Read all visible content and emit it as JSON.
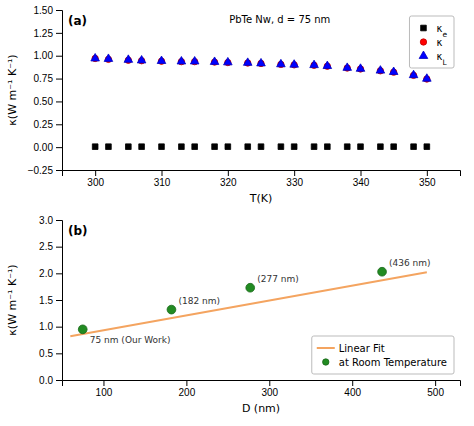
{
  "chart_data": [
    {
      "type": "scatter",
      "title": "PbTe Nw, d = 75 nm",
      "annotations": [
        "(a)"
      ],
      "xlabel": "T(K)",
      "ylabel": "κ(W m⁻¹ K⁻¹)",
      "x": [
        300,
        302,
        305,
        307,
        310,
        313,
        315,
        318,
        320,
        323,
        325,
        328,
        330,
        333,
        335,
        338,
        340,
        343,
        345,
        348,
        350
      ],
      "series": [
        {
          "name": "κe",
          "color": "black",
          "marker": "square",
          "values": [
            0.005,
            0.005,
            0.005,
            0.005,
            0.005,
            0.005,
            0.005,
            0.005,
            0.005,
            0.005,
            0.005,
            0.005,
            0.005,
            0.005,
            0.005,
            0.005,
            0.005,
            0.005,
            0.005,
            0.005,
            0.005
          ]
        },
        {
          "name": "κ",
          "color": "red",
          "marker": "circle",
          "values": [
            0.97,
            0.96,
            0.95,
            0.945,
            0.94,
            0.935,
            0.935,
            0.93,
            0.925,
            0.92,
            0.915,
            0.905,
            0.9,
            0.895,
            0.885,
            0.865,
            0.855,
            0.835,
            0.82,
            0.785,
            0.745
          ]
        },
        {
          "name": "κL",
          "color": "blue",
          "marker": "triangle",
          "values": [
            0.97,
            0.965,
            0.955,
            0.948,
            0.942,
            0.937,
            0.937,
            0.932,
            0.927,
            0.922,
            0.916,
            0.906,
            0.902,
            0.897,
            0.887,
            0.867,
            0.857,
            0.837,
            0.822,
            0.787,
            0.748
          ]
        }
      ],
      "xlim": [
        295,
        355
      ],
      "ylim": [
        -0.25,
        1.5
      ],
      "xticks": [
        300,
        310,
        320,
        330,
        340,
        350
      ],
      "yticks": [
        {
          "value": -0.25,
          "label": "−0.25"
        },
        {
          "value": 0.0,
          "label": "0.00"
        },
        0.25,
        {
          "value": 0.5,
          "label": "0.50"
        },
        0.75,
        {
          "value": 1.0,
          "label": "1.00"
        },
        1.25,
        {
          "value": 1.5,
          "label": "1.50"
        }
      ],
      "legend": "upper right",
      "grid": false
    },
    {
      "type": "scatter",
      "annotations": [
        "(b)"
      ],
      "xlabel": "D (nm)",
      "ylabel": "κ(W m⁻¹ K⁻¹)",
      "series": [
        {
          "name": "Linear Fit",
          "type": "line",
          "color": "#f4a460",
          "x": [
            60,
            490
          ],
          "values": [
            0.82,
            2.02
          ]
        },
        {
          "name": "at Room Temperature",
          "type": "scatter",
          "color": "#228B22",
          "marker": "circle",
          "x": [
            75,
            182,
            277,
            436
          ],
          "values": [
            0.95,
            1.32,
            1.73,
            2.03
          ],
          "labels": [
            "75 nm (Our Work)",
            "(182 nm)",
            "(277 nm)",
            "(436 nm)"
          ]
        }
      ],
      "xlim": [
        50,
        530
      ],
      "ylim": [
        0.0,
        3.0
      ],
      "xticks": [
        100,
        200,
        300,
        400,
        500
      ],
      "yticks": [
        {
          "value": 0.0,
          "label": "0.0"
        },
        0.5,
        {
          "value": 1.0,
          "label": "1.0"
        },
        1.5,
        {
          "value": 2.0,
          "label": "2.0"
        },
        2.5,
        {
          "value": 3.0,
          "label": "3.0"
        }
      ],
      "legend": "lower right",
      "grid": false
    }
  ]
}
